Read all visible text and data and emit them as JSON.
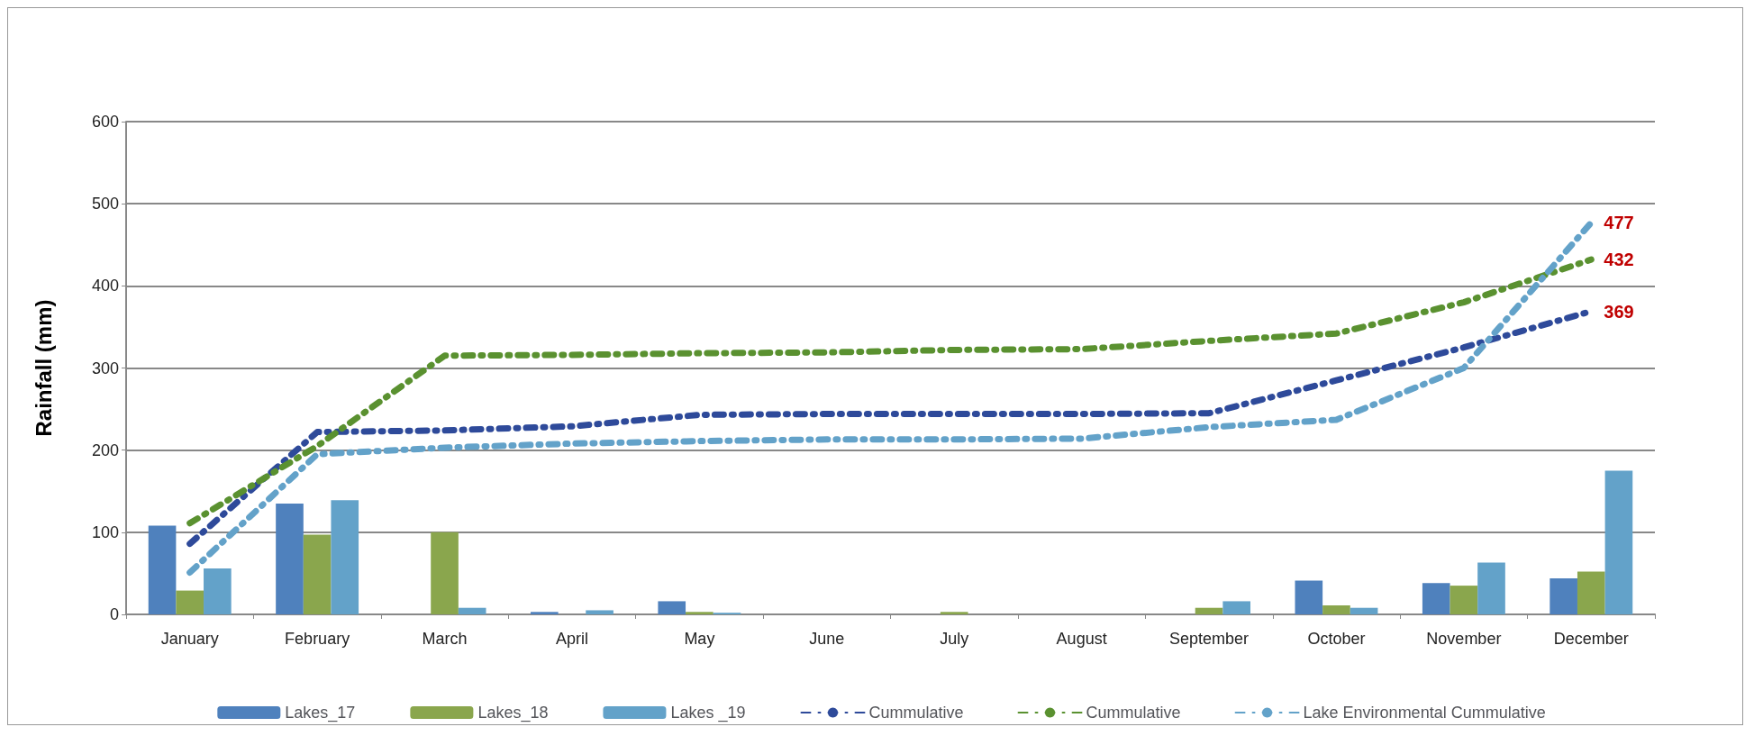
{
  "chart_data": {
    "type": "bar",
    "ylabel": "Rainfall (mm)",
    "categories": [
      "January",
      "February",
      "March",
      "April",
      "May",
      "June",
      "July",
      "August",
      "September",
      "October",
      "November",
      "December"
    ],
    "series": [
      {
        "name": "Lakes_17",
        "color": "#4f81bd",
        "values": [
          108,
          135,
          0,
          3,
          16,
          0,
          0,
          0,
          0,
          41,
          38,
          44
        ]
      },
      {
        "name": "Lakes_18",
        "color": "#8aa64d",
        "values": [
          29,
          97,
          100,
          0,
          3,
          0,
          3,
          0,
          8,
          11,
          35,
          52
        ]
      },
      {
        "name": "Lakes _19",
        "color": "#63a2c9",
        "values": [
          56,
          139,
          8,
          5,
          2,
          0,
          0,
          0,
          16,
          8,
          63,
          175
        ]
      },
      {
        "name": "Cummulative",
        "type": "line",
        "color": "#2e4a9a",
        "values": [
          86,
          222,
          224,
          229,
          243,
          244,
          244,
          244,
          245,
          285,
          325,
          369
        ],
        "value_labels": [
          null,
          null,
          null,
          null,
          null,
          null,
          null,
          null,
          null,
          null,
          null,
          "369"
        ]
      },
      {
        "name": "Cummulative",
        "type": "line",
        "color": "#5a9130",
        "values": [
          111,
          205,
          315,
          316,
          318,
          319,
          322,
          323,
          333,
          342,
          380,
          432
        ],
        "value_labels": [
          null,
          null,
          null,
          null,
          null,
          null,
          null,
          null,
          null,
          null,
          null,
          "432"
        ]
      },
      {
        "name": "Lake Environmental Cummulative",
        "type": "line",
        "color": "#63a2c9",
        "values": [
          51,
          195,
          203,
          208,
          211,
          213,
          213,
          214,
          228,
          237,
          300,
          477
        ],
        "value_labels": [
          null,
          null,
          null,
          null,
          null,
          null,
          null,
          null,
          null,
          null,
          null,
          "477"
        ]
      }
    ],
    "ylim": [
      0,
      600
    ],
    "yticks": [
      0,
      100,
      200,
      300,
      400,
      500,
      600
    ],
    "grid": "y",
    "legend": "bottom",
    "marker": "none",
    "line_style": "dashed"
  }
}
